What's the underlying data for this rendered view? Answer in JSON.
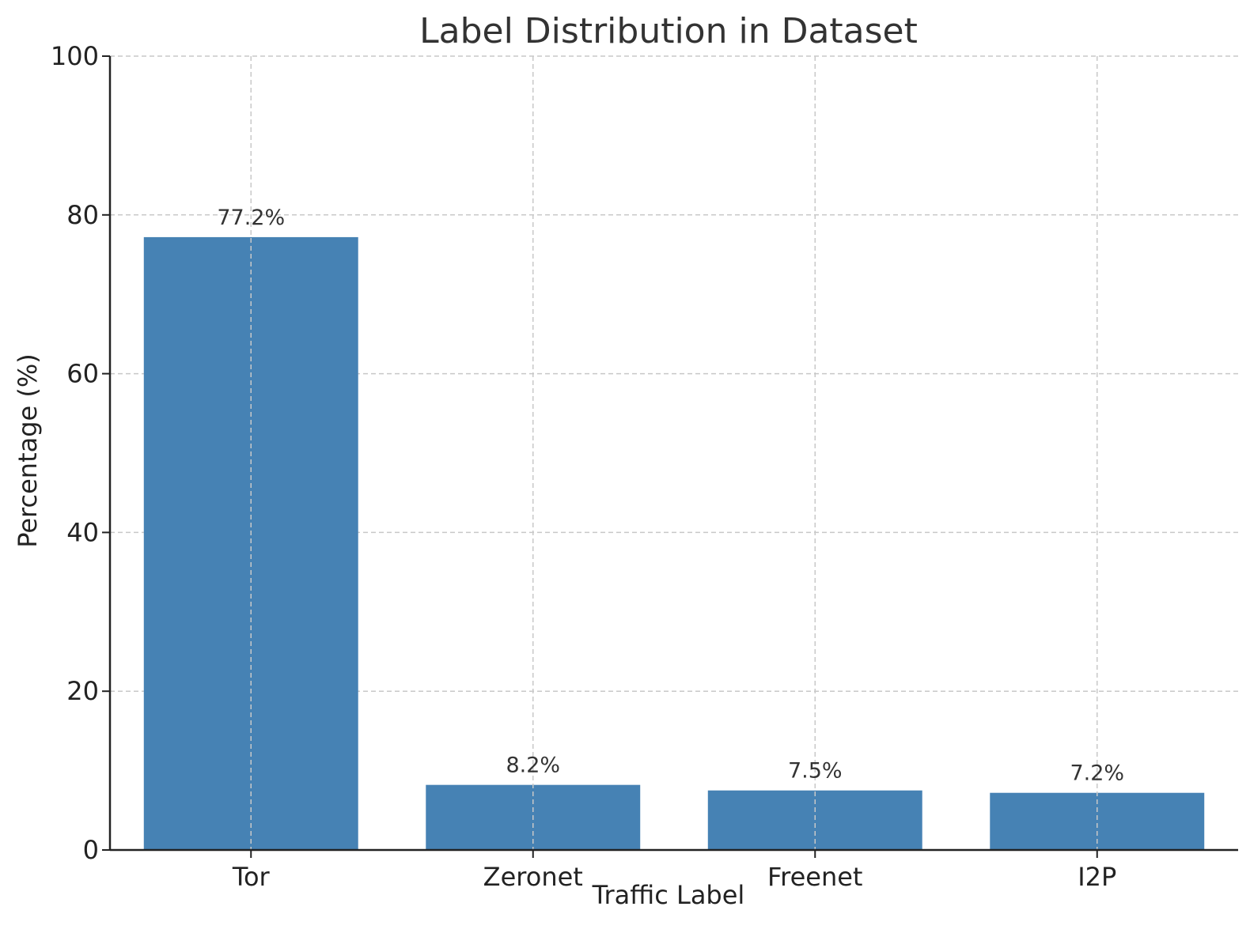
{
  "chart_data": {
    "type": "bar",
    "title": "Label Distribution in Dataset",
    "xlabel": "Traffic Label",
    "ylabel": "Percentage (%)",
    "categories": [
      "Tor",
      "Zeronet",
      "Freenet",
      "I2P"
    ],
    "values": [
      77.2,
      8.2,
      7.5,
      7.2
    ],
    "data_labels": [
      "77.2%",
      "8.2%",
      "7.5%",
      "7.2%"
    ],
    "ylim": [
      0,
      100
    ],
    "yticks": [
      0,
      20,
      40,
      60,
      80,
      100
    ],
    "grid": true,
    "bar_color": "#4682b4"
  }
}
